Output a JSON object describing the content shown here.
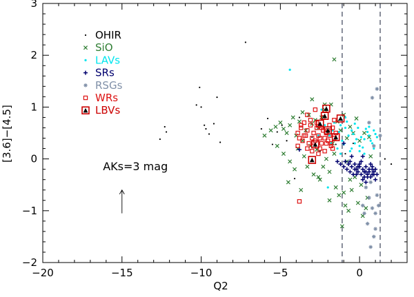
{
  "chart_data": {
    "type": "scatter",
    "title": "",
    "xlabel": "Q2",
    "ylabel": "[3.6]−[4.5]",
    "xlim": [
      -20,
      3
    ],
    "ylim": [
      -2,
      3
    ],
    "xticks": [
      -20,
      -15,
      -10,
      -5,
      0
    ],
    "xtick_labels": [
      "−20",
      "−15",
      "−10",
      "−5",
      "0"
    ],
    "yticks": [
      -2,
      -1,
      0,
      1,
      2,
      3
    ],
    "ytick_labels": [
      "−2",
      "−1",
      "0",
      "1",
      "2",
      "3"
    ],
    "vlines": [
      -1.1,
      1.3
    ],
    "annotation": {
      "text": "AKs=3 mag",
      "arrow_from": [
        -15,
        -1.05
      ],
      "arrow_to": [
        -15,
        -0.6
      ]
    },
    "series": [
      {
        "name": "OHIR",
        "marker": "dot",
        "color": "#000000",
        "x": [
          -12.6,
          -12.3,
          -12.2,
          -10.3,
          -10.1,
          -10.0,
          -9.8,
          -9.7,
          -9.5,
          -9.2,
          -9.0,
          -8.8,
          -7.2,
          -6.2,
          -5.8,
          -5.5,
          -5.2,
          -4.9,
          -4.6,
          -4.1,
          -3.8,
          -3.0,
          -2.5,
          -1.5,
          -0.9,
          -0.4,
          1.6,
          2.0
        ],
        "y": [
          0.38,
          0.62,
          0.52,
          1.04,
          1.38,
          1.0,
          0.65,
          0.58,
          0.48,
          0.68,
          1.19,
          0.32,
          2.25,
          0.58,
          0.78,
          0.28,
          0.52,
          0.65,
          0.35,
          -0.38,
          0.8,
          0.42,
          0.15,
          0.28,
          0.1,
          0.3,
          0.0,
          -0.1
        ]
      },
      {
        "name": "SiO",
        "marker": "x",
        "color": "#2e7d32",
        "x": [
          -6.0,
          -5.6,
          -5.3,
          -5.0,
          -4.8,
          -4.6,
          -4.4,
          -4.2,
          -4.0,
          -3.8,
          -3.6,
          -3.4,
          -3.2,
          -3.0,
          -2.8,
          -2.6,
          -2.4,
          -2.2,
          -2.0,
          -1.8,
          -1.6,
          -1.4,
          -1.2,
          -1.0,
          -0.8,
          -0.6,
          -0.4,
          -0.2,
          0.0,
          0.3,
          0.6,
          -5.2,
          -4.8,
          -4.4,
          -4.1,
          -3.9,
          -3.5,
          -3.3,
          -2.9,
          -2.7,
          -2.5,
          -2.1,
          -1.9,
          -1.5,
          -1.3,
          -0.9,
          -0.5,
          -0.1,
          0.2,
          0.5,
          -3.0,
          -2.2,
          -1.7,
          -1.1,
          -0.7,
          0.1,
          -4.5,
          -3.7,
          -2.3,
          -1.6,
          -0.8,
          -0.3,
          0.4,
          -1.9,
          -1.0,
          -0.6,
          0.7,
          -3.1,
          -2.6,
          -3.6
        ],
        "y": [
          0.45,
          0.55,
          0.62,
          0.7,
          0.58,
          0.5,
          0.65,
          0.8,
          0.45,
          0.72,
          0.9,
          0.55,
          0.85,
          0.68,
          0.75,
          0.6,
          0.8,
          0.95,
          0.5,
          1.05,
          1.92,
          0.72,
          0.55,
          0.85,
          0.4,
          0.62,
          0.5,
          0.78,
          0.35,
          0.5,
          0.42,
          0.25,
          0.1,
          -0.05,
          -0.2,
          0.2,
          0.05,
          -0.15,
          -0.3,
          0.18,
          -0.4,
          0.0,
          -0.25,
          -0.55,
          -0.7,
          -0.9,
          -0.6,
          -0.85,
          -1.1,
          -0.75,
          1.15,
          1.05,
          0.3,
          -1.3,
          -1.0,
          -0.5,
          -0.45,
          -0.6,
          -0.15,
          0.1,
          -0.05,
          -0.35,
          -0.95,
          -0.8,
          -0.65,
          -0.4,
          0.05,
          0.25,
          -0.35,
          0.35
        ]
      },
      {
        "name": "LAVs",
        "marker": "dot",
        "color": "#00e5ee",
        "x": [
          -4.4,
          -2.2,
          -1.9,
          -1.7,
          -1.5,
          -1.3,
          -1.1,
          -0.9,
          -0.7,
          -0.5,
          -0.3,
          -0.1,
          0.1,
          0.3,
          0.5,
          0.7,
          -1.6,
          -1.2,
          -0.8,
          -0.4,
          0.0,
          0.4,
          0.8,
          -1.4,
          -1.0,
          -0.6,
          -0.2,
          0.2,
          0.6,
          -2.4,
          -0.9,
          -0.3,
          0.9,
          1.1,
          -1.8,
          -0.5,
          0.3,
          0.6,
          0.9,
          1.0,
          -2.6,
          -2.0,
          -1.2,
          0.0
        ],
        "y": [
          1.72,
          0.65,
          0.45,
          0.55,
          0.4,
          0.52,
          0.35,
          0.6,
          0.45,
          0.55,
          0.3,
          0.6,
          0.42,
          0.38,
          0.52,
          0.35,
          0.7,
          0.65,
          0.72,
          0.48,
          0.25,
          0.58,
          0.3,
          0.2,
          0.28,
          0.15,
          0.38,
          0.22,
          0.45,
          0.95,
          0.8,
          0.68,
          0.55,
          0.42,
          0.3,
          0.2,
          0.1,
          0.62,
          0.2,
          0.48,
          0.45,
          -0.55,
          0.1,
          0.15
        ]
      },
      {
        "name": "SRs",
        "marker": "plus",
        "color": "#00006e",
        "x": [
          -1.4,
          -1.2,
          -1.0,
          -0.9,
          -0.8,
          -0.7,
          -0.6,
          -0.5,
          -0.4,
          -0.3,
          -0.2,
          -0.1,
          0.0,
          0.1,
          0.2,
          0.3,
          0.4,
          0.5,
          0.6,
          0.7,
          0.8,
          0.9,
          1.0,
          1.1,
          -0.6,
          -0.3,
          0.0,
          0.2,
          0.4,
          0.6,
          0.8,
          1.0,
          -0.5,
          -0.2,
          0.1,
          0.3,
          0.5,
          0.7,
          0.9,
          -0.1,
          0.4,
          0.8,
          -3.8,
          -1.0,
          0.2
        ],
        "y": [
          -0.05,
          -0.1,
          -0.15,
          -0.05,
          -0.2,
          -0.1,
          -0.25,
          -0.15,
          -0.3,
          -0.1,
          -0.2,
          -0.25,
          -0.15,
          -0.3,
          -0.2,
          -0.35,
          -0.25,
          -0.3,
          -0.2,
          -0.35,
          -0.3,
          -0.25,
          -0.4,
          -0.3,
          -0.05,
          -0.2,
          -0.1,
          -0.4,
          -0.15,
          -0.25,
          -0.15,
          -0.2,
          0.05,
          -0.3,
          -0.05,
          -0.25,
          -0.35,
          -0.1,
          -0.3,
          -0.15,
          -0.45,
          -0.2,
          0.18,
          0.3,
          0.05
        ]
      },
      {
        "name": "RSGs",
        "marker": "asterisk",
        "color": "#8090a8",
        "x": [
          0.4,
          0.6,
          0.8,
          1.0,
          1.1,
          0.5,
          0.9,
          0.7,
          1.0,
          0.3,
          1.2,
          1.1,
          0.8,
          0.6,
          0.9,
          1.3,
          0.2,
          0.7
        ],
        "y": [
          -0.55,
          -0.75,
          -0.95,
          -1.05,
          -0.7,
          -1.25,
          -1.5,
          -1.7,
          -1.35,
          -1.05,
          -0.9,
          1.35,
          1.18,
          0.7,
          0.25,
          0.45,
          -0.9,
          -0.45
        ]
      },
      {
        "name": "WRs",
        "marker": "square",
        "color": "#dd1111",
        "x": [
          -3.9,
          -3.7,
          -3.5,
          -3.3,
          -3.1,
          -2.9,
          -2.7,
          -2.5,
          -2.3,
          -2.1,
          -1.9,
          -1.7,
          -1.5,
          -3.8,
          -3.6,
          -3.4,
          -3.2,
          -3.0,
          -2.8,
          -2.6,
          -2.4,
          -2.2,
          -2.0,
          -1.8,
          -1.6,
          -3.5,
          -3.1,
          -2.7,
          -2.3,
          -1.9,
          -3.9,
          -3.3,
          -2.9,
          -2.5,
          -2.1,
          -1.7,
          -3.0,
          -2.6,
          -2.2,
          -1.8,
          -3.7,
          -2.4,
          -2.0,
          -3.3,
          -2.8,
          -1.6,
          -3.8
        ],
        "y": [
          0.5,
          0.6,
          0.45,
          0.55,
          0.65,
          0.5,
          0.6,
          0.4,
          0.55,
          0.5,
          0.45,
          0.6,
          0.5,
          0.4,
          0.35,
          0.45,
          0.3,
          0.4,
          0.35,
          0.45,
          0.3,
          0.4,
          0.35,
          0.3,
          0.4,
          0.7,
          0.75,
          0.7,
          0.8,
          0.65,
          0.25,
          0.2,
          0.25,
          0.2,
          0.3,
          0.2,
          0.15,
          0.1,
          0.15,
          0.25,
          0.65,
          0.6,
          0.55,
          0.85,
          0.95,
          0.75,
          -0.82
        ]
      },
      {
        "name": "LBVs",
        "marker": "triangle-in-square",
        "color": "#cc0000",
        "x": [
          -2.1,
          -2.2,
          -1.2,
          -2.5,
          -1.5,
          -2.8,
          -3.0,
          -2.0
        ],
        "y": [
          0.97,
          0.83,
          0.78,
          0.68,
          0.42,
          0.28,
          -0.02,
          0.55
        ]
      }
    ]
  }
}
